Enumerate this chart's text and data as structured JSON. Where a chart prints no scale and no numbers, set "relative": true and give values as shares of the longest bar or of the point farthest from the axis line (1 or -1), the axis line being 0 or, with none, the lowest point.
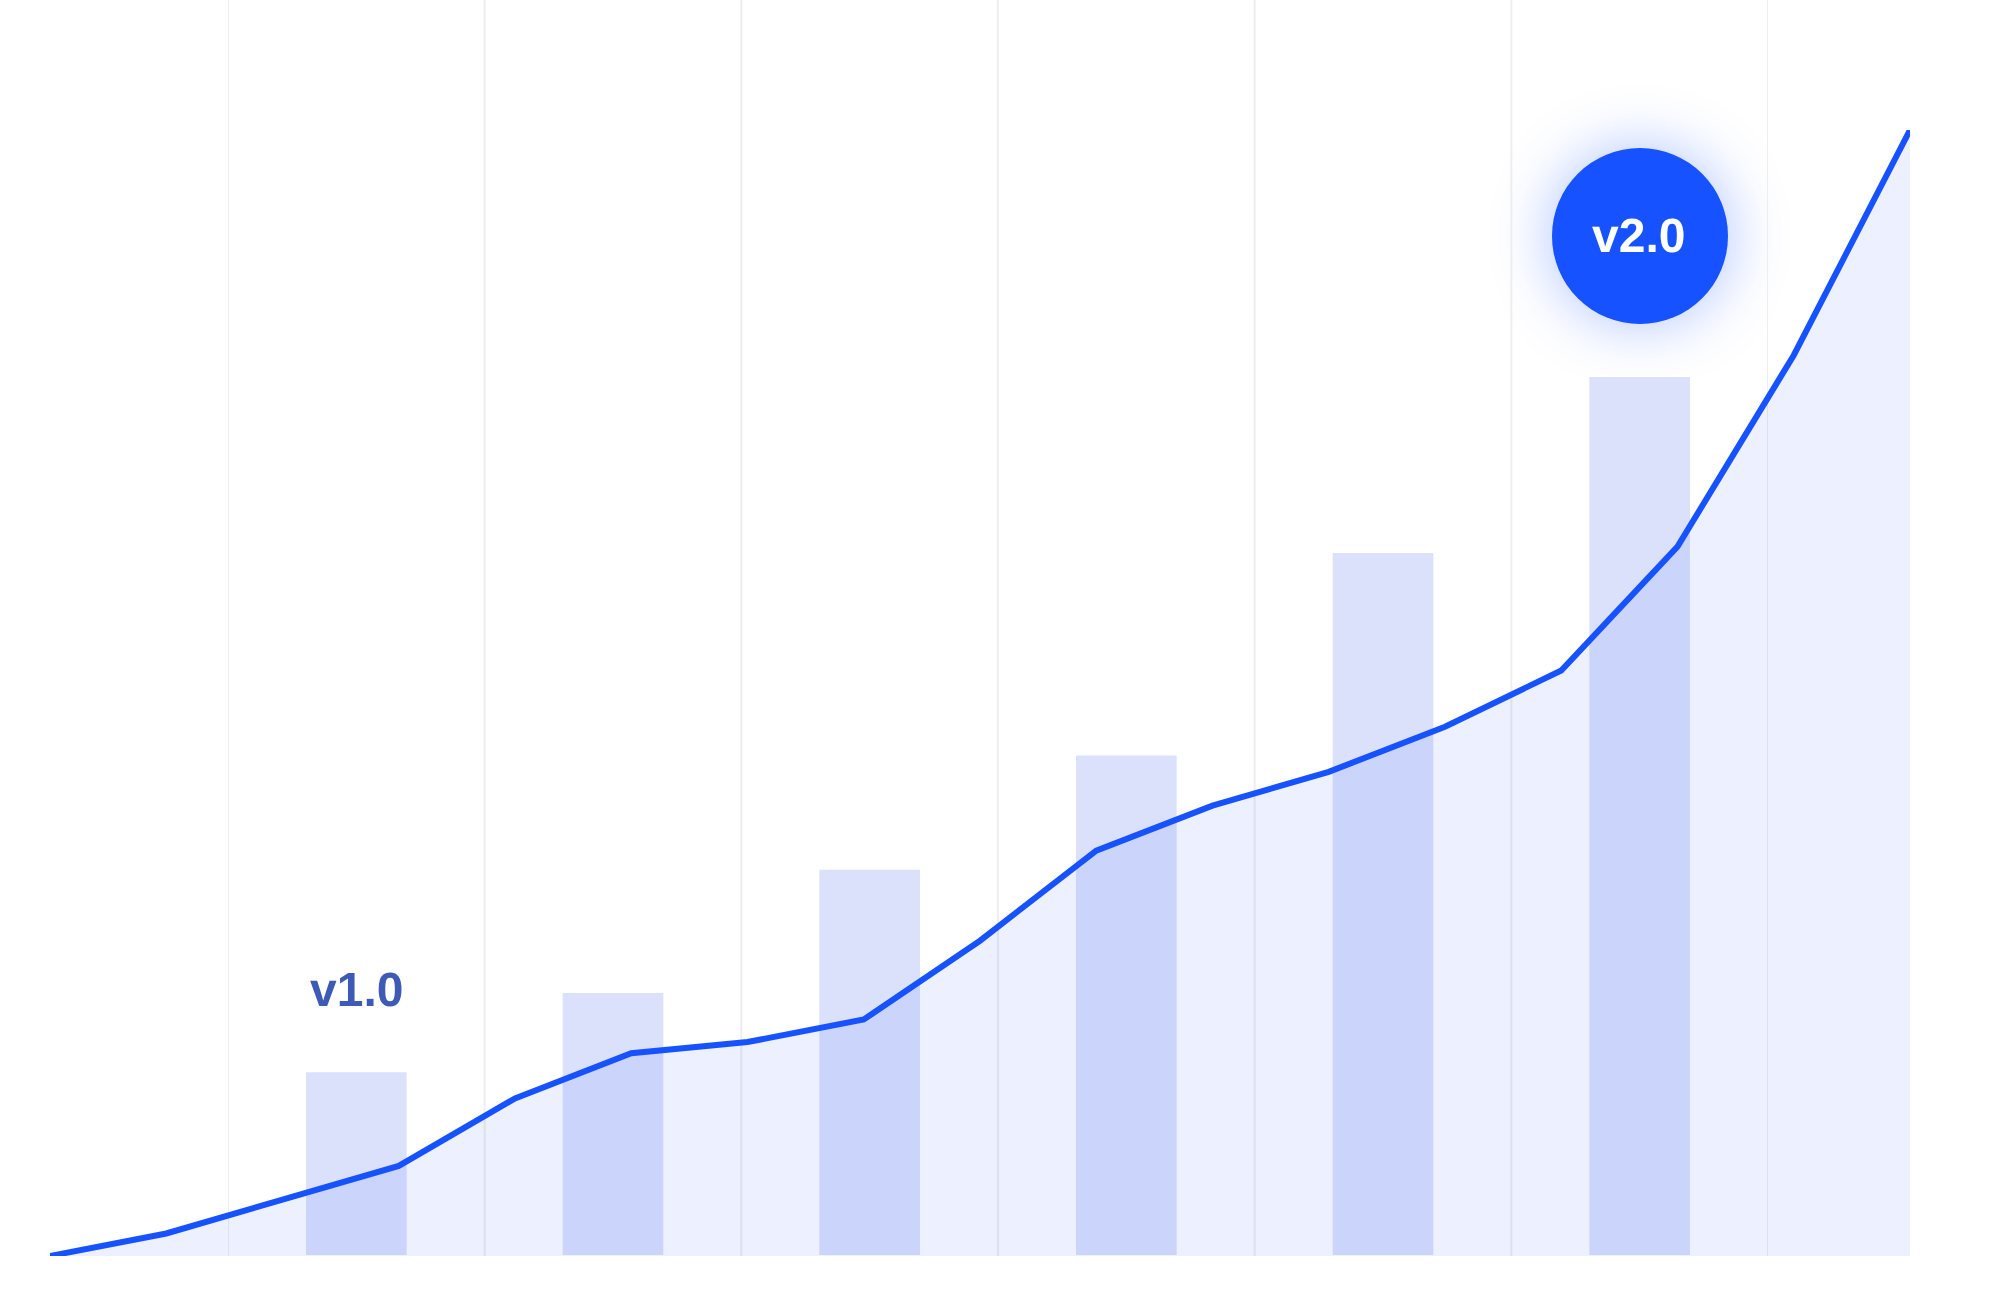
{
  "chart_data": [
    {
      "type": "bar",
      "relative": true,
      "categories": [
        null,
        null,
        null,
        null,
        null,
        null
      ],
      "color": "#dbe0fb",
      "values": [
        0.21,
        0.3,
        0.44,
        0.57,
        0.8,
        1.0
      ],
      "annotations": [
        "v1.0",
        "v2.0"
      ],
      "grid": "x"
    },
    {
      "type": "area",
      "relative": true,
      "categories": [
        null,
        null,
        null,
        null,
        null,
        null,
        null,
        null,
        null,
        null,
        null,
        null,
        null,
        null,
        null,
        null,
        null
      ],
      "color": "#1652ff",
      "values": [
        0,
        0.02,
        0.05,
        0.08,
        0.14,
        0.18,
        0.19,
        0.21,
        0.28,
        0.36,
        0.4,
        0.43,
        0.47,
        0.52,
        0.63,
        0.8,
        1.0
      ],
      "grid": false
    }
  ]
}
